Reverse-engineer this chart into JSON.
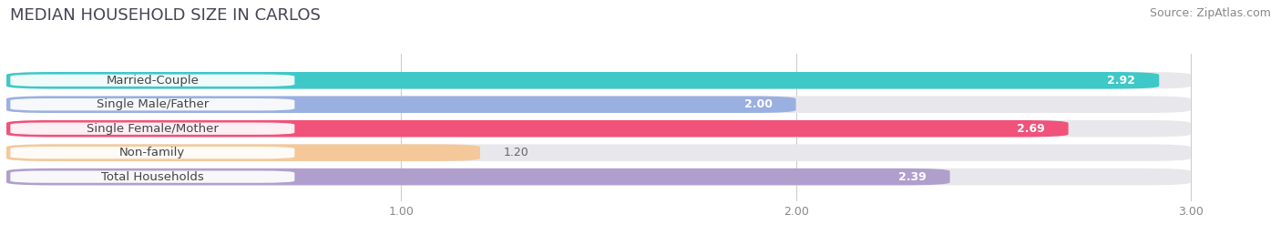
{
  "title": "MEDIAN HOUSEHOLD SIZE IN CARLOS",
  "source": "Source: ZipAtlas.com",
  "categories": [
    "Married-Couple",
    "Single Male/Father",
    "Single Female/Mother",
    "Non-family",
    "Total Households"
  ],
  "values": [
    2.92,
    2.0,
    2.69,
    1.2,
    2.39
  ],
  "bar_colors": [
    "#3ec8c8",
    "#9ab0e0",
    "#f0527a",
    "#f5c89a",
    "#b09fcc"
  ],
  "bar_bg_color": "#e8e8ec",
  "xlim_start": 0,
  "xlim_end": 3.18,
  "xaxis_max": 3.0,
  "xticks": [
    1.0,
    2.0,
    3.0
  ],
  "title_fontsize": 13,
  "source_fontsize": 9,
  "label_fontsize": 9.5,
  "value_fontsize": 9
}
